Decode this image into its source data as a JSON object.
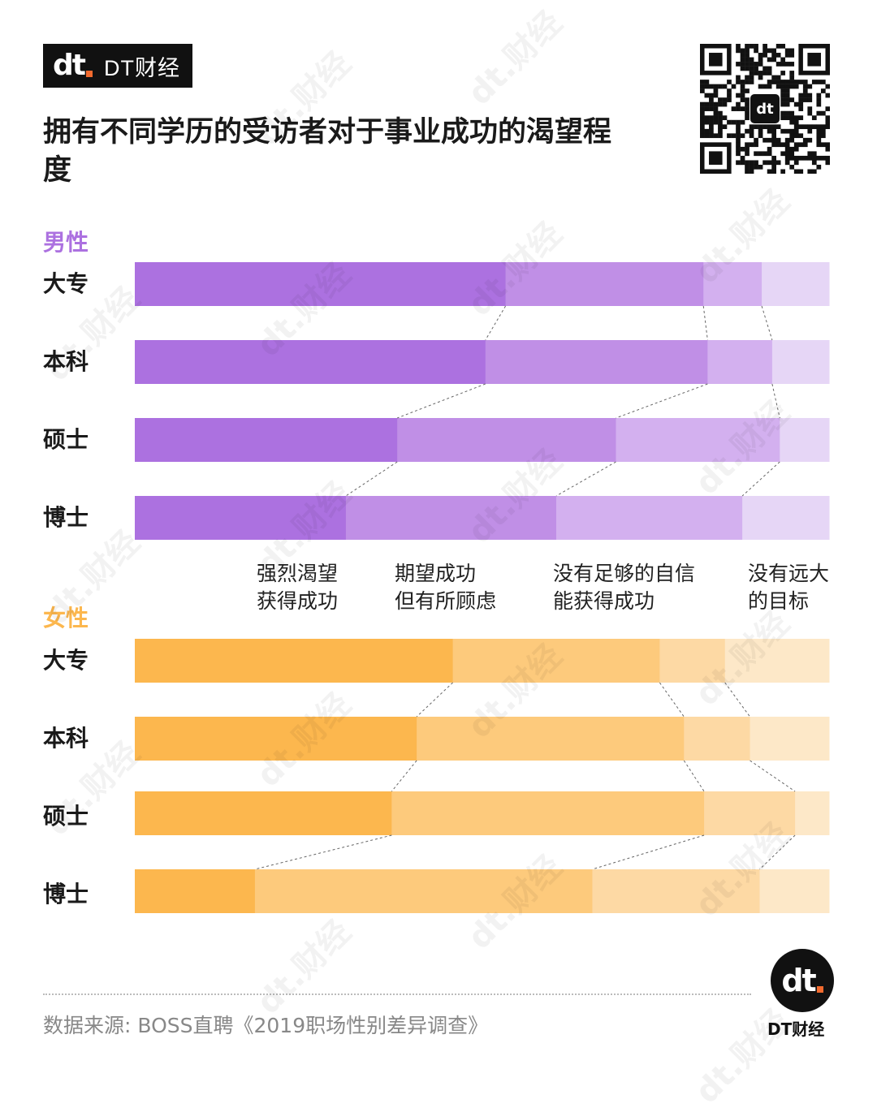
{
  "brand": {
    "name": "DT财经",
    "logo": "dt"
  },
  "title": "拥有不同学历的受访者对于事业成功的渴望程度",
  "colors": {
    "male": [
      "#ac71e0",
      "#c08fe6",
      "#d3b0ef",
      "#e6d6f6"
    ],
    "female": [
      "#fcb74e",
      "#fdca7c",
      "#fdd9a4",
      "#fde8c8"
    ]
  },
  "legend": [
    "强烈渴望\n获得成功",
    "期望成功\n但有所顾虑",
    "没有足够的自信\n能获得成功",
    "没有远大\n的目标"
  ],
  "chart_data": {
    "type": "bar",
    "stacked": "100%",
    "categories": [
      "大专",
      "本科",
      "硕士",
      "博士"
    ],
    "series_names": [
      "强烈渴望获得成功",
      "期望成功但有所顾虑",
      "没有足够的自信能获得成功",
      "没有远大的目标"
    ],
    "groups": [
      {
        "name": "男性",
        "rows": [
          [
            53.4,
            28.5,
            8.4,
            9.7
          ],
          [
            50.5,
            32.0,
            9.3,
            8.2
          ],
          [
            37.8,
            31.5,
            23.6,
            7.1
          ],
          [
            30.4,
            30.3,
            26.8,
            12.5
          ]
        ]
      },
      {
        "name": "女性",
        "rows": [
          [
            45.8,
            29.8,
            9.4,
            15.0
          ],
          [
            40.6,
            38.5,
            9.5,
            11.4
          ],
          [
            37.0,
            45.0,
            13.1,
            4.9
          ],
          [
            17.3,
            48.6,
            24.1,
            10.0
          ]
        ]
      }
    ]
  },
  "source": "数据来源: BOSS直聘《2019职场性别差异调查》",
  "footer": {
    "name": "DT财经"
  },
  "watermark": "dt.财经"
}
